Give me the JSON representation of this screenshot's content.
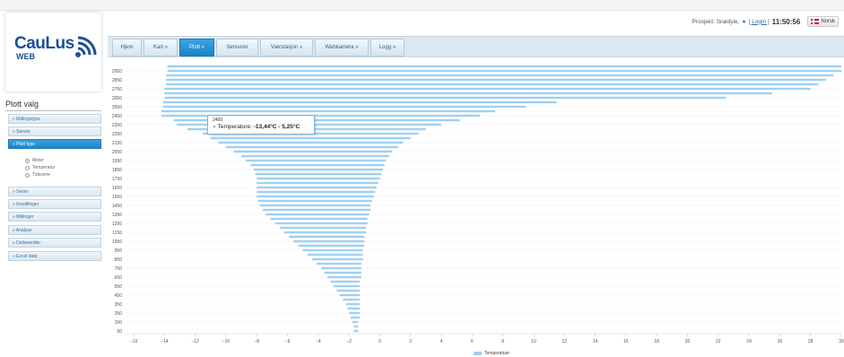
{
  "header": {
    "project_label": "Prosjekt: Snødyle,",
    "login_label": "[ Login ]",
    "clock": "11:50:56",
    "language": "Norsk"
  },
  "logo": {
    "word": "CauLus",
    "sub": "WEB"
  },
  "nav": {
    "items": [
      {
        "label": "Hjem"
      },
      {
        "label": "Kart »"
      },
      {
        "label": "Plott »"
      },
      {
        "label": "Sensorer"
      },
      {
        "label": "Værstasjon »"
      },
      {
        "label": "Webkamera »"
      },
      {
        "label": "Logg »"
      }
    ]
  },
  "sidebar": {
    "title": "Plott valg",
    "items": [
      {
        "label": "» Målingstype"
      },
      {
        "label": "» Sensor"
      },
      {
        "label": "« Plott type"
      },
      {
        "label": "» Serier"
      },
      {
        "label": "» Innstillinger"
      },
      {
        "label": "» Målinger"
      },
      {
        "label": "» Analyse"
      },
      {
        "label": "» Deltaverdier"
      },
      {
        "label": "» Excel data"
      }
    ],
    "plot_types": [
      {
        "label": "Meter",
        "selected": true
      },
      {
        "label": "Temperatur",
        "selected": false
      },
      {
        "label": "Tidsserie",
        "selected": false
      }
    ]
  },
  "tooltip": {
    "depth": "2400",
    "series": "Temperature:",
    "range": "-13,44°C - 5,25°C"
  },
  "chart_data": {
    "type": "bar",
    "orientation": "horizontal",
    "legend": "Temperature",
    "legend_position": "bottom-center",
    "xlim": [
      -16,
      30
    ],
    "xticks": [
      -16,
      -14,
      -12,
      -10,
      -8,
      -6,
      -4,
      -2,
      0,
      2,
      4,
      6,
      8,
      10,
      12,
      14,
      16,
      18,
      20,
      22,
      24,
      26,
      28,
      30
    ],
    "yticks": [
      2950,
      2850,
      2750,
      2650,
      2550,
      2450,
      2350,
      2250,
      2150,
      2050,
      1950,
      1850,
      1750,
      1650,
      1550,
      1450,
      1350,
      1250,
      1150,
      1050,
      950,
      850,
      750,
      650,
      550,
      450,
      350,
      250,
      150,
      50
    ],
    "bar_color": "#9fd0f0",
    "series": [
      {
        "name": "Temperature",
        "bars": [
          [
            3000,
            -13.8,
            30.0
          ],
          [
            2950,
            -13.8,
            30.0
          ],
          [
            2900,
            -13.9,
            29.5
          ],
          [
            2850,
            -13.9,
            29.0
          ],
          [
            2800,
            -13.9,
            28.5
          ],
          [
            2750,
            -14.0,
            28.0
          ],
          [
            2700,
            -14.0,
            25.5
          ],
          [
            2650,
            -14.0,
            22.5
          ],
          [
            2600,
            -14.1,
            11.5
          ],
          [
            2550,
            -14.1,
            9.5
          ],
          [
            2500,
            -14.2,
            7.5
          ],
          [
            2450,
            -14.2,
            6.5
          ],
          [
            2400,
            -13.4,
            5.2
          ],
          [
            2350,
            -13.2,
            4.0
          ],
          [
            2300,
            -12.5,
            3.0
          ],
          [
            2250,
            -11.5,
            2.5
          ],
          [
            2200,
            -11.0,
            2.0
          ],
          [
            2150,
            -10.5,
            1.5
          ],
          [
            2100,
            -10.0,
            1.2
          ],
          [
            2050,
            -9.5,
            0.8
          ],
          [
            2000,
            -9.0,
            0.6
          ],
          [
            1950,
            -8.7,
            0.4
          ],
          [
            1900,
            -8.4,
            0.3
          ],
          [
            1850,
            -8.2,
            0.2
          ],
          [
            1800,
            -8.1,
            0.1
          ],
          [
            1750,
            -8.0,
            0.0
          ],
          [
            1700,
            -8.0,
            -0.1
          ],
          [
            1650,
            -8.0,
            -0.2
          ],
          [
            1600,
            -8.0,
            -0.3
          ],
          [
            1550,
            -8.0,
            -0.4
          ],
          [
            1500,
            -7.9,
            -0.5
          ],
          [
            1450,
            -7.8,
            -0.6
          ],
          [
            1400,
            -7.6,
            -0.6
          ],
          [
            1350,
            -7.4,
            -0.7
          ],
          [
            1300,
            -7.1,
            -0.8
          ],
          [
            1250,
            -6.8,
            -0.8
          ],
          [
            1200,
            -6.5,
            -0.9
          ],
          [
            1150,
            -6.2,
            -0.9
          ],
          [
            1100,
            -5.9,
            -1.0
          ],
          [
            1050,
            -5.6,
            -1.0
          ],
          [
            1000,
            -5.3,
            -1.0
          ],
          [
            950,
            -5.0,
            -1.1
          ],
          [
            900,
            -4.7,
            -1.1
          ],
          [
            850,
            -4.4,
            -1.1
          ],
          [
            800,
            -4.1,
            -1.2
          ],
          [
            750,
            -3.8,
            -1.2
          ],
          [
            700,
            -3.6,
            -1.2
          ],
          [
            650,
            -3.4,
            -1.2
          ],
          [
            600,
            -3.2,
            -1.3
          ],
          [
            550,
            -3.0,
            -1.3
          ],
          [
            500,
            -2.8,
            -1.3
          ],
          [
            450,
            -2.6,
            -1.3
          ],
          [
            400,
            -2.4,
            -1.3
          ],
          [
            350,
            -2.2,
            -1.3
          ],
          [
            300,
            -2.1,
            -1.3
          ],
          [
            250,
            -2.0,
            -1.3
          ],
          [
            200,
            -1.9,
            -1.3
          ],
          [
            150,
            -1.8,
            -1.4
          ],
          [
            100,
            -1.7,
            -1.4
          ],
          [
            50,
            -1.7,
            -1.4
          ]
        ]
      }
    ]
  }
}
